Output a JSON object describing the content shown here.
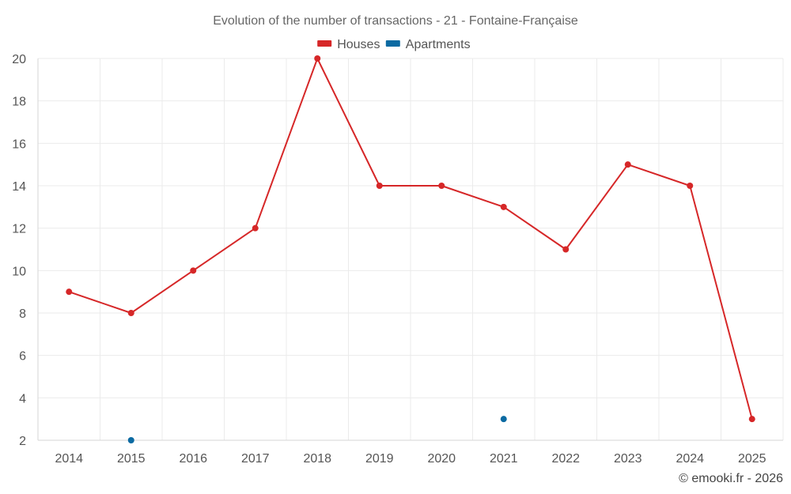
{
  "chart_data": {
    "type": "line",
    "title": "Evolution of the number of transactions - 21 - Fontaine-Française",
    "xlabel": "",
    "ylabel": "",
    "categories": [
      "2014",
      "2015",
      "2016",
      "2017",
      "2018",
      "2019",
      "2020",
      "2021",
      "2022",
      "2023",
      "2024",
      "2025"
    ],
    "ylim": [
      2,
      20
    ],
    "yticks": [
      2,
      4,
      6,
      8,
      10,
      12,
      14,
      16,
      18,
      20
    ],
    "grid": true,
    "legend_position": "top-center",
    "series": [
      {
        "name": "Houses",
        "color": "#d62728",
        "style": "line-with-markers",
        "values": [
          9,
          8,
          10,
          12,
          20,
          14,
          14,
          13,
          11,
          15,
          14,
          3
        ]
      },
      {
        "name": "Apartments",
        "color": "#0b6aa2",
        "style": "markers",
        "values": [
          null,
          2,
          null,
          null,
          null,
          null,
          null,
          3,
          null,
          null,
          null,
          null
        ]
      }
    ]
  },
  "credit": "© emooki.fr - 2026"
}
